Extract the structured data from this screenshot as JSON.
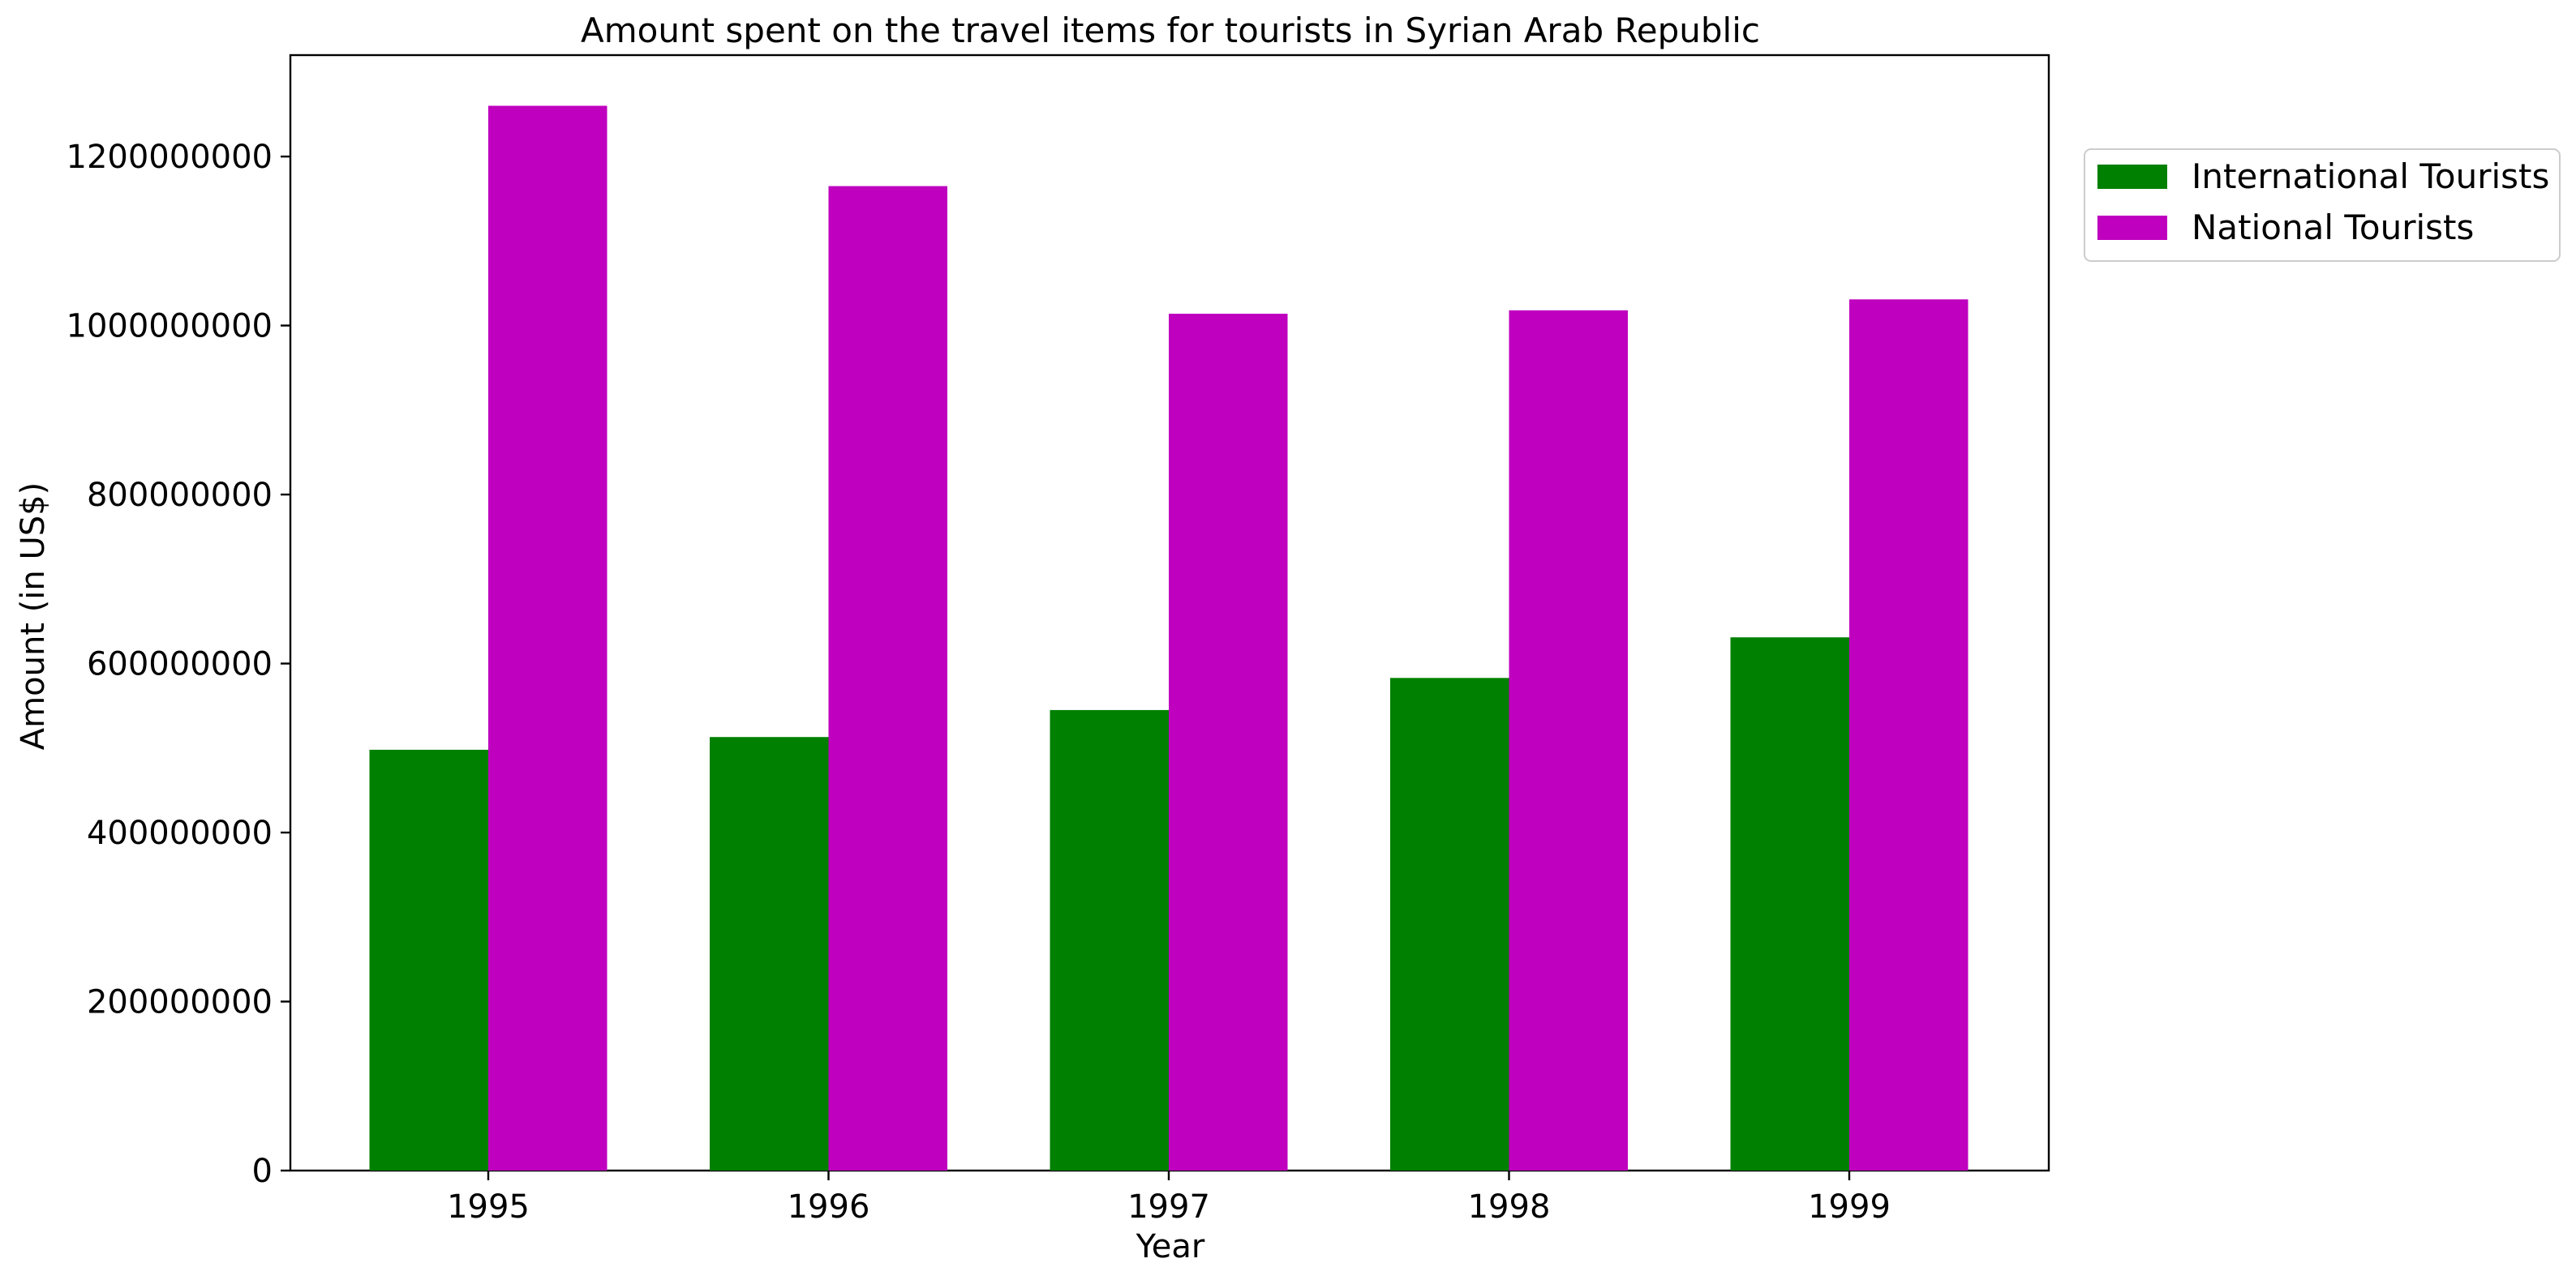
{
  "chart_data": {
    "type": "bar",
    "title": "Amount spent on the travel items for tourists in Syrian Arab Republic",
    "xlabel": "Year",
    "ylabel": "Amount (in US$)",
    "categories": [
      "1995",
      "1996",
      "1997",
      "1998",
      "1999"
    ],
    "series": [
      {
        "name": "International Tourists",
        "color": "#008000",
        "values": [
          498000000,
          513000000,
          545000000,
          583000000,
          631000000
        ]
      },
      {
        "name": "National Tourists",
        "color": "#bf00bf",
        "values": [
          1260000000,
          1165000000,
          1014000000,
          1018000000,
          1031000000
        ]
      }
    ],
    "ylim": [
      0,
      1320000000
    ],
    "yticks": [
      0,
      200000000,
      400000000,
      600000000,
      800000000,
      1000000000,
      1200000000
    ],
    "ytick_labels": [
      "0",
      "200000000",
      "400000000",
      "600000000",
      "800000000",
      "1000000000",
      "1200000000"
    ],
    "grid": false,
    "legend_position": "outside-top-right"
  }
}
